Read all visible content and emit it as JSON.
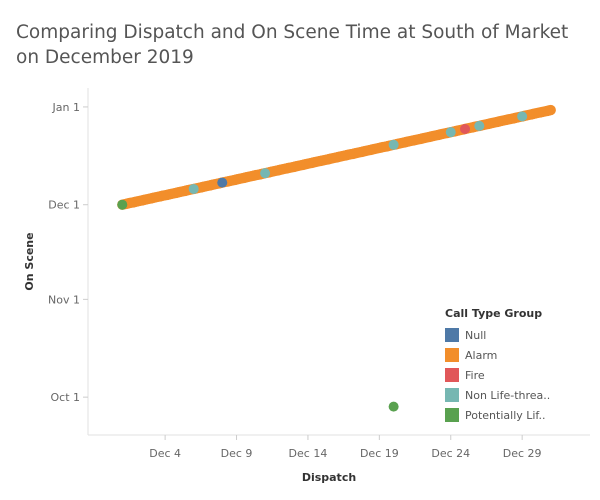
{
  "chart_data": {
    "type": "scatter",
    "title": "Comparing Dispatch and On Scene Time at South of Market on December 2019",
    "xlabel": "Dispatch",
    "ylabel": "On Scene",
    "x_ticks": [
      "Dec 4",
      "Dec 9",
      "Dec 14",
      "Dec 19",
      "Dec 24",
      "Dec 29"
    ],
    "x_tick_values": [
      "2019-12-04",
      "2019-12-09",
      "2019-12-14",
      "2019-12-19",
      "2019-12-24",
      "2019-12-29"
    ],
    "y_ticks": [
      "Oct 1",
      "Nov 1",
      "Dec 1",
      "Jan 1"
    ],
    "y_tick_values": [
      "2019-10-01",
      "2019-11-01",
      "2019-12-01",
      "2020-01-01"
    ],
    "xlim": [
      "2019-11-30",
      "2020-01-01"
    ],
    "ylim": [
      "2019-09-19",
      "2020-01-07"
    ],
    "grid": false,
    "legend": {
      "title": "Call Type Group",
      "position": "bottom-right",
      "entries": [
        {
          "label": "Null",
          "color": "#4e79a7"
        },
        {
          "label": "Alarm",
          "color": "#f28e2b"
        },
        {
          "label": "Fire",
          "color": "#e15759"
        },
        {
          "label": "Non Life-threa..",
          "color": "#76b7b2"
        },
        {
          "label": "Potentially Lif..",
          "color": "#59a14f"
        }
      ]
    },
    "series": [
      {
        "name": "Alarm",
        "color": "#f28e2b",
        "shape": "dense diagonal band",
        "x_range": [
          "2019-12-01",
          "2019-12-31"
        ],
        "y_range": [
          "2019-12-01",
          "2019-12-31"
        ]
      },
      {
        "name": "Null",
        "color": "#4e79a7",
        "points": [
          {
            "x": "2019-12-08",
            "y": "2019-12-08"
          }
        ]
      },
      {
        "name": "Fire",
        "color": "#e15759",
        "points": [
          {
            "x": "2019-12-25",
            "y": "2019-12-25"
          }
        ]
      },
      {
        "name": "Non Life-threa..",
        "color": "#76b7b2",
        "points": [
          {
            "x": "2019-12-06",
            "y": "2019-12-06"
          },
          {
            "x": "2019-12-11",
            "y": "2019-12-11"
          },
          {
            "x": "2019-12-20",
            "y": "2019-12-20"
          },
          {
            "x": "2019-12-24",
            "y": "2019-12-24"
          },
          {
            "x": "2019-12-26",
            "y": "2019-12-26"
          },
          {
            "x": "2019-12-29",
            "y": "2019-12-29"
          }
        ]
      },
      {
        "name": "Potentially Lif..",
        "color": "#59a14f",
        "points": [
          {
            "x": "2019-12-01",
            "y": "2019-12-01"
          },
          {
            "x": "2019-12-20",
            "y": "2019-09-28"
          }
        ]
      }
    ]
  }
}
